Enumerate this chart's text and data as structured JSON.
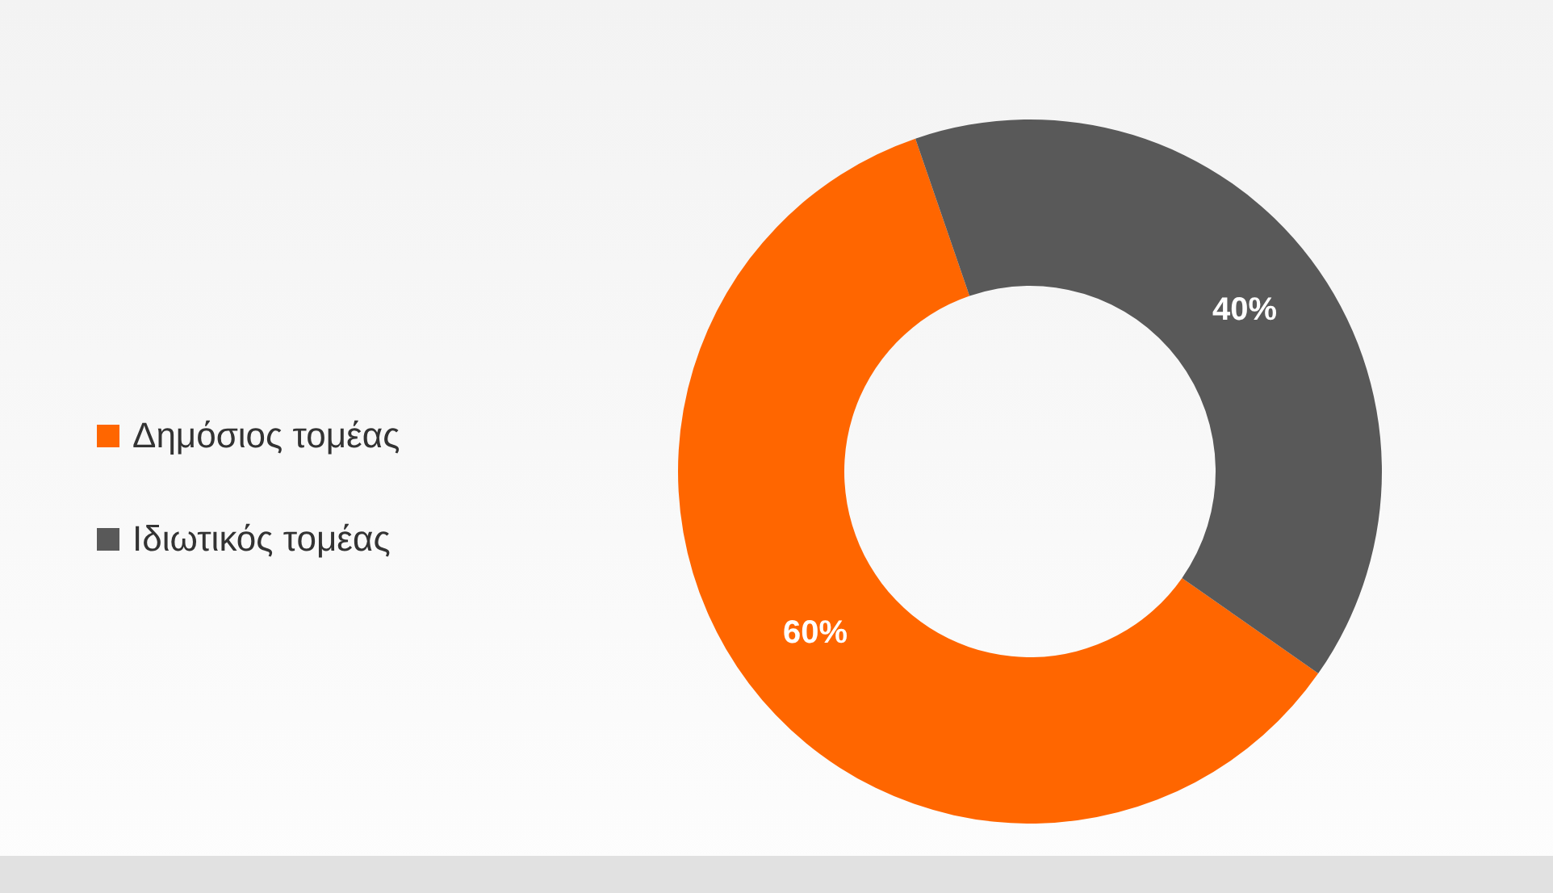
{
  "chart_data": {
    "type": "donut",
    "categories": [
      "Δημόσιος τομέας",
      "Ιδιωτικός τομέας"
    ],
    "values": [
      60,
      40
    ],
    "colors": [
      "#ff6600",
      "#595959"
    ],
    "value_labels": [
      "60%",
      "40%"
    ],
    "legend": "left"
  }
}
